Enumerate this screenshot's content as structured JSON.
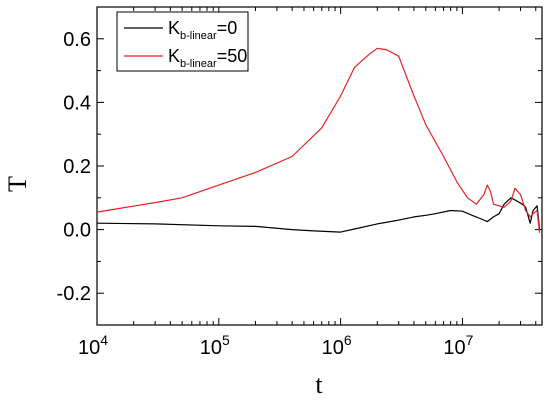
{
  "chart_data": {
    "type": "line",
    "xlabel": "t",
    "ylabel": "T",
    "x_scale": "log",
    "xlim": [
      10000,
      45000000
    ],
    "ylim": [
      -0.3,
      0.7
    ],
    "x_ticks": [
      {
        "value": 10000,
        "base": "10",
        "exp": "4"
      },
      {
        "value": 100000,
        "base": "10",
        "exp": "5"
      },
      {
        "value": 1000000,
        "base": "10",
        "exp": "6"
      },
      {
        "value": 10000000,
        "base": "10",
        "exp": "7"
      }
    ],
    "y_ticks": [
      {
        "value": -0.2,
        "label": "-0.2"
      },
      {
        "value": 0.0,
        "label": "0.0"
      },
      {
        "value": 0.2,
        "label": "0.2"
      },
      {
        "value": 0.4,
        "label": "0.4"
      },
      {
        "value": 0.6,
        "label": "0.6"
      }
    ],
    "legend_position": "top-left",
    "series": [
      {
        "name_main": "K",
        "name_sub": "b-linear",
        "name_rest": "=0",
        "color": "#000000",
        "points": [
          [
            10000,
            0.02
          ],
          [
            30000,
            0.018
          ],
          [
            100000,
            0.012
          ],
          [
            200000,
            0.01
          ],
          [
            400000,
            0.0
          ],
          [
            600000,
            -0.004
          ],
          [
            1000000,
            -0.008
          ],
          [
            1300000,
            0.002
          ],
          [
            2000000,
            0.018
          ],
          [
            3000000,
            0.03
          ],
          [
            4000000,
            0.04
          ],
          [
            5000000,
            0.045
          ],
          [
            6000000,
            0.05
          ],
          [
            8000000,
            0.06
          ],
          [
            10000000,
            0.058
          ],
          [
            12000000,
            0.045
          ],
          [
            14000000,
            0.035
          ],
          [
            16000000,
            0.025
          ],
          [
            18000000,
            0.04
          ],
          [
            20000000,
            0.05
          ],
          [
            22000000,
            0.08
          ],
          [
            25000000,
            0.1
          ],
          [
            28000000,
            0.09
          ],
          [
            31000000,
            0.08
          ],
          [
            33000000,
            0.07
          ],
          [
            36000000,
            0.02
          ],
          [
            38000000,
            0.06
          ],
          [
            41000000,
            0.075
          ],
          [
            43000000,
            0.0
          ]
        ]
      },
      {
        "name_main": "K",
        "name_sub": "b-linear",
        "name_rest": "=50",
        "color": "#e32222",
        "points": [
          [
            10000,
            0.055
          ],
          [
            30000,
            0.085
          ],
          [
            50000,
            0.1
          ],
          [
            100000,
            0.14
          ],
          [
            200000,
            0.18
          ],
          [
            400000,
            0.23
          ],
          [
            700000,
            0.32
          ],
          [
            1000000,
            0.42
          ],
          [
            1300000,
            0.51
          ],
          [
            1700000,
            0.55
          ],
          [
            2000000,
            0.57
          ],
          [
            2400000,
            0.565
          ],
          [
            3000000,
            0.545
          ],
          [
            4000000,
            0.42
          ],
          [
            5000000,
            0.33
          ],
          [
            7000000,
            0.23
          ],
          [
            9000000,
            0.15
          ],
          [
            11000000,
            0.1
          ],
          [
            13000000,
            0.08
          ],
          [
            15000000,
            0.11
          ],
          [
            16000000,
            0.14
          ],
          [
            17000000,
            0.12
          ],
          [
            18000000,
            0.08
          ],
          [
            20000000,
            0.075
          ],
          [
            22000000,
            0.07
          ],
          [
            25000000,
            0.09
          ],
          [
            27000000,
            0.13
          ],
          [
            30000000,
            0.11
          ],
          [
            33000000,
            0.06
          ],
          [
            36000000,
            0.04
          ],
          [
            38000000,
            0.05
          ],
          [
            41000000,
            0.06
          ],
          [
            43000000,
            -0.01
          ]
        ]
      }
    ]
  }
}
